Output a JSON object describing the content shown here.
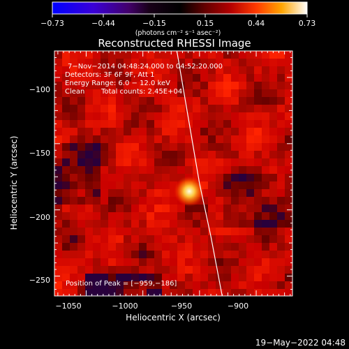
{
  "chart_data": {
    "type": "heatmap",
    "title": "Reconstructed RHESSI Image",
    "xlabel": "Heliocentric X (arcsec)",
    "ylabel": "Heliocentric Y (arcsec)",
    "xlim": [
      -1078,
      -868
    ],
    "ylim": [
      -265,
      -80
    ],
    "xticks": [
      -1050,
      -1000,
      -950,
      -900
    ],
    "xtick_labels": [
      "−1050",
      "−1000",
      "−950",
      "−900"
    ],
    "yticks": [
      -250,
      -200,
      -150,
      -100
    ],
    "ytick_labels": [
      "−250",
      "−200",
      "−150",
      "−100"
    ],
    "colorbar": {
      "range": [
        -0.73,
        0.73
      ],
      "tick_values": [
        -0.73,
        -0.44,
        -0.15,
        0.15,
        0.44,
        0.73
      ],
      "tick_labels": [
        "−0.73",
        "−0.44",
        "−0.15",
        "0.15",
        "0.44",
        "0.73"
      ],
      "units_label": "(photons cm⁻² s⁻¹ asec⁻²)"
    },
    "annotations": {
      "time_range": "7−Nov−2014 04:48:24.000 to 04:52:20.000",
      "detectors": "Detectors: 3F 6F 9F, Att 1",
      "energy": "Energy Range: 6.0 − 12.0 keV",
      "clean": "Clean",
      "counts": "Total counts: 2.45E+04",
      "peak": "Position of Peak = [−959,−186]"
    },
    "peak": {
      "x": -959,
      "y": -186
    },
    "limb_curve": [
      [
        -970,
        -80
      ],
      [
        -960,
        -130
      ],
      [
        -950,
        -180
      ],
      [
        -940,
        -220
      ],
      [
        -930,
        -265
      ]
    ],
    "footer": "19−May−2022 04:48",
    "colors": {
      "background": "#000000",
      "foreground": "#ffffff"
    }
  }
}
